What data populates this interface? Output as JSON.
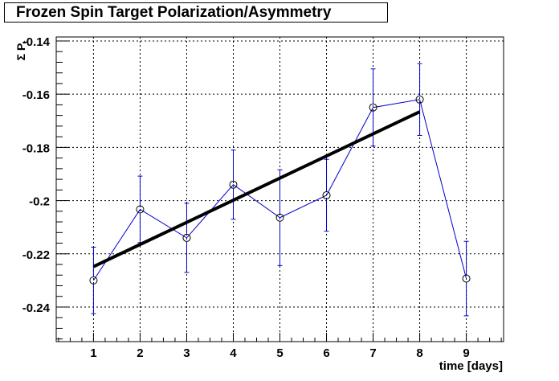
{
  "chart_data": {
    "type": "line",
    "title": "Frozen Spin Target Polarization/Asymmetry",
    "xlabel": "time [days]",
    "ylabel": "Σ P_{t}",
    "xlim": [
      0.2,
      9.8
    ],
    "ylim": [
      -0.253,
      -0.1385
    ],
    "x_ticks": [
      1,
      2,
      3,
      4,
      5,
      6,
      7,
      8,
      9
    ],
    "y_ticks": [
      -0.24,
      -0.22,
      -0.2,
      -0.18,
      -0.16,
      -0.14
    ],
    "y_tick_labels": [
      "-0.24",
      "-0.22",
      "-0.2",
      "-0.18",
      "-0.16",
      "-0.14"
    ],
    "grid": true,
    "series": [
      {
        "style": "markers-with-errorbars",
        "color": "#0000cc",
        "x": [
          1,
          2,
          3,
          4,
          5,
          6,
          7,
          8,
          9
        ],
        "y": [
          -0.23,
          -0.2033,
          -0.214,
          -0.194,
          -0.2064,
          -0.198,
          -0.165,
          -0.162,
          -0.2293
        ],
        "yerr": [
          0.0125,
          0.0125,
          0.013,
          0.013,
          0.018,
          0.0135,
          0.0145,
          0.0135,
          0.014
        ]
      },
      {
        "style": "fit-line",
        "color": "#000000",
        "x": [
          1,
          8
        ],
        "y": [
          -0.2248,
          -0.1666
        ]
      }
    ]
  }
}
